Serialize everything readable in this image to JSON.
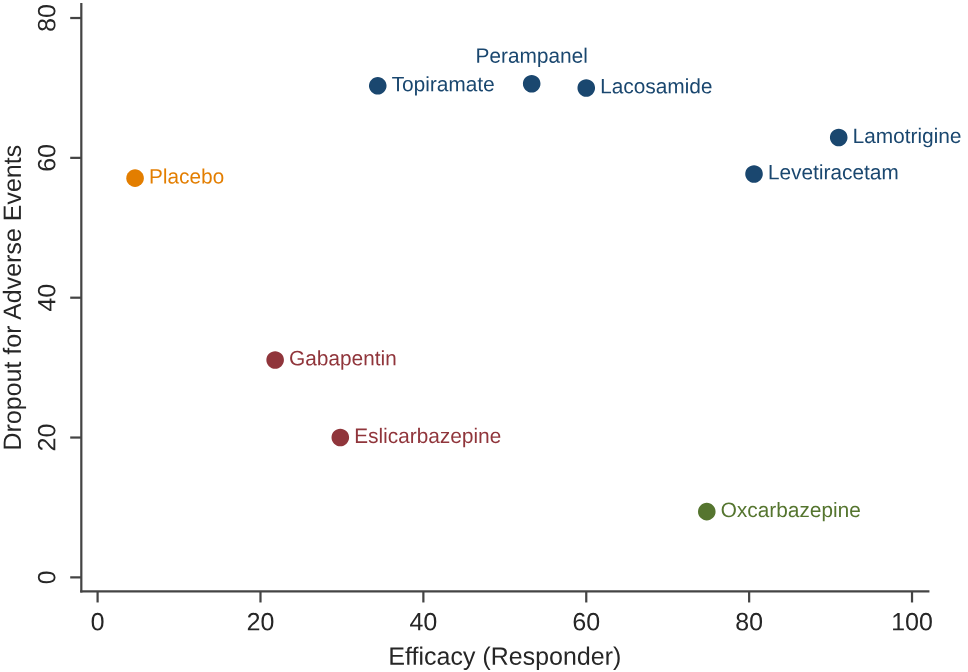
{
  "chart_data": {
    "type": "scatter",
    "xlabel": "Efficacy (Responder)",
    "ylabel": "Dropout for Adverse Events",
    "xlim": [
      -2,
      102
    ],
    "ylim": [
      -2,
      82
    ],
    "xticks": [
      0,
      20,
      40,
      60,
      80,
      100
    ],
    "yticks": [
      0,
      20,
      40,
      60,
      80
    ],
    "grid": false,
    "legend": false,
    "marker": "circle",
    "series": [
      {
        "name": "Placebo",
        "color": "#e37e00",
        "x": [
          4.6
        ],
        "values": [
          57.1
        ]
      },
      {
        "name": "Topiramate",
        "color": "#1a476f",
        "x": [
          34.4
        ],
        "values": [
          70.3
        ]
      },
      {
        "name": "Perampanel",
        "color": "#1a476f",
        "x": [
          53.3
        ],
        "values": [
          70.6
        ]
      },
      {
        "name": "Lacosamide",
        "color": "#1a476f",
        "x": [
          60
        ],
        "values": [
          70
        ]
      },
      {
        "name": "Lamotrigine",
        "color": "#1a476f",
        "x": [
          91
        ],
        "values": [
          62.9
        ]
      },
      {
        "name": "Levetiracetam",
        "color": "#1a476f",
        "x": [
          80.6
        ],
        "values": [
          57.7
        ]
      },
      {
        "name": "Gabapentin",
        "color": "#90353b",
        "x": [
          21.8
        ],
        "values": [
          31.1
        ]
      },
      {
        "name": "Eslicarbazepine",
        "color": "#90353b",
        "x": [
          29.8
        ],
        "values": [
          20
        ]
      },
      {
        "name": "Oxcarbazepine",
        "color": "#55752f",
        "x": [
          74.8
        ],
        "values": [
          9.4
        ]
      }
    ]
  }
}
